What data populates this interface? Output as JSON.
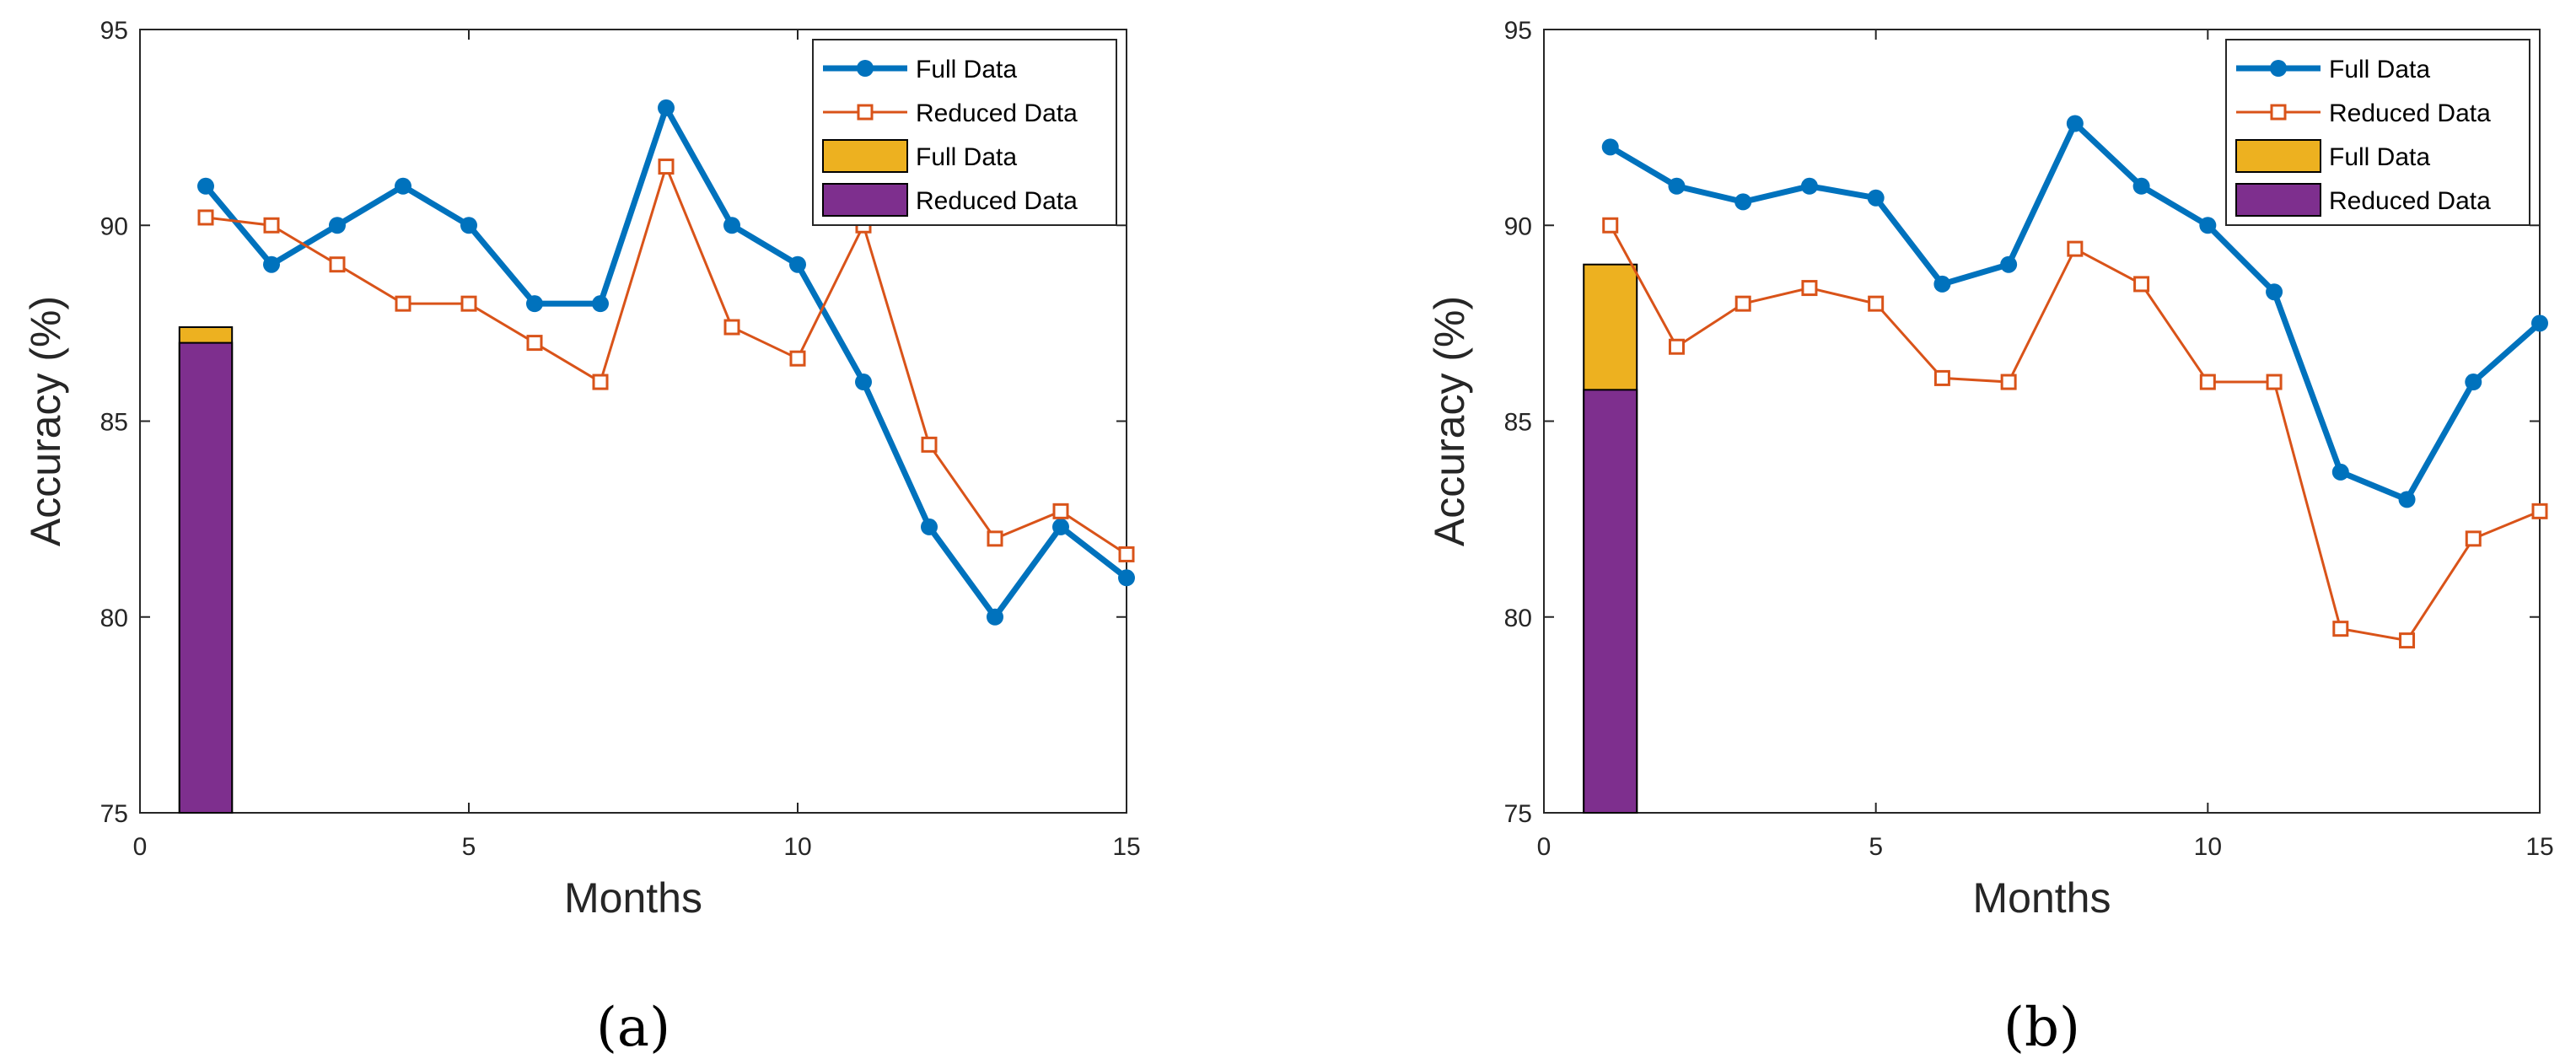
{
  "colors": {
    "full_line": "#0072BD",
    "reduced_line": "#D95319",
    "full_bar": "#EDB120",
    "reduced_bar": "#7E2F8E"
  },
  "chart_data": [
    {
      "type": "line",
      "caption": "(a)",
      "xlabel": "Months",
      "ylabel": "Accuracy (%)",
      "xlim": [
        0,
        15
      ],
      "ylim": [
        75,
        95
      ],
      "xticks": [
        "0",
        "5",
        "10",
        "15"
      ],
      "xtick_values": [
        0,
        5,
        10,
        15
      ],
      "yticks": [
        "75",
        "80",
        "85",
        "90",
        "95"
      ],
      "ytick_values": [
        75,
        80,
        85,
        90,
        95
      ],
      "legend_placement": "top-right",
      "x": [
        1,
        2,
        3,
        4,
        5,
        6,
        7,
        8,
        9,
        10,
        11,
        12,
        13,
        14,
        15
      ],
      "series": [
        {
          "name": "Full Data",
          "kind": "line-circle",
          "values": [
            91,
            89,
            90,
            91,
            90,
            88,
            88,
            93,
            90,
            89,
            86,
            82.3,
            80,
            82.3,
            81
          ]
        },
        {
          "name": "Reduced Data",
          "kind": "line-square",
          "values": [
            90.2,
            90,
            89,
            88,
            88,
            87,
            86,
            91.5,
            87.4,
            86.6,
            90,
            84.4,
            82,
            82.7,
            81.6
          ]
        }
      ],
      "bars": [
        {
          "name": "Full Data",
          "x": 1,
          "value": 87.4
        },
        {
          "name": "Reduced Data",
          "x": 1,
          "value": 87
        }
      ]
    },
    {
      "type": "line",
      "caption": "(b)",
      "xlabel": "Months",
      "ylabel": "Accuracy (%)",
      "xlim": [
        0,
        15
      ],
      "ylim": [
        75,
        95
      ],
      "xticks": [
        "0",
        "5",
        "10",
        "15"
      ],
      "xtick_values": [
        0,
        5,
        10,
        15
      ],
      "yticks": [
        "75",
        "80",
        "85",
        "90",
        "95"
      ],
      "ytick_values": [
        75,
        80,
        85,
        90,
        95
      ],
      "legend_placement": "top-right",
      "x": [
        1,
        2,
        3,
        4,
        5,
        6,
        7,
        8,
        9,
        10,
        11,
        12,
        13,
        14,
        15
      ],
      "series": [
        {
          "name": "Full Data",
          "kind": "line-circle",
          "values": [
            92,
            91,
            90.6,
            91,
            90.7,
            88.5,
            89,
            92.6,
            91,
            90,
            88.3,
            83.7,
            83,
            86,
            87.5
          ]
        },
        {
          "name": "Reduced Data",
          "kind": "line-square",
          "values": [
            90,
            86.9,
            88,
            88.4,
            88,
            86.1,
            86,
            89.4,
            88.5,
            86,
            86,
            79.7,
            79.4,
            82,
            82.7
          ]
        }
      ],
      "bars": [
        {
          "name": "Full Data",
          "x": 1,
          "value": 89
        },
        {
          "name": "Reduced Data",
          "x": 1,
          "value": 85.8
        }
      ]
    }
  ]
}
